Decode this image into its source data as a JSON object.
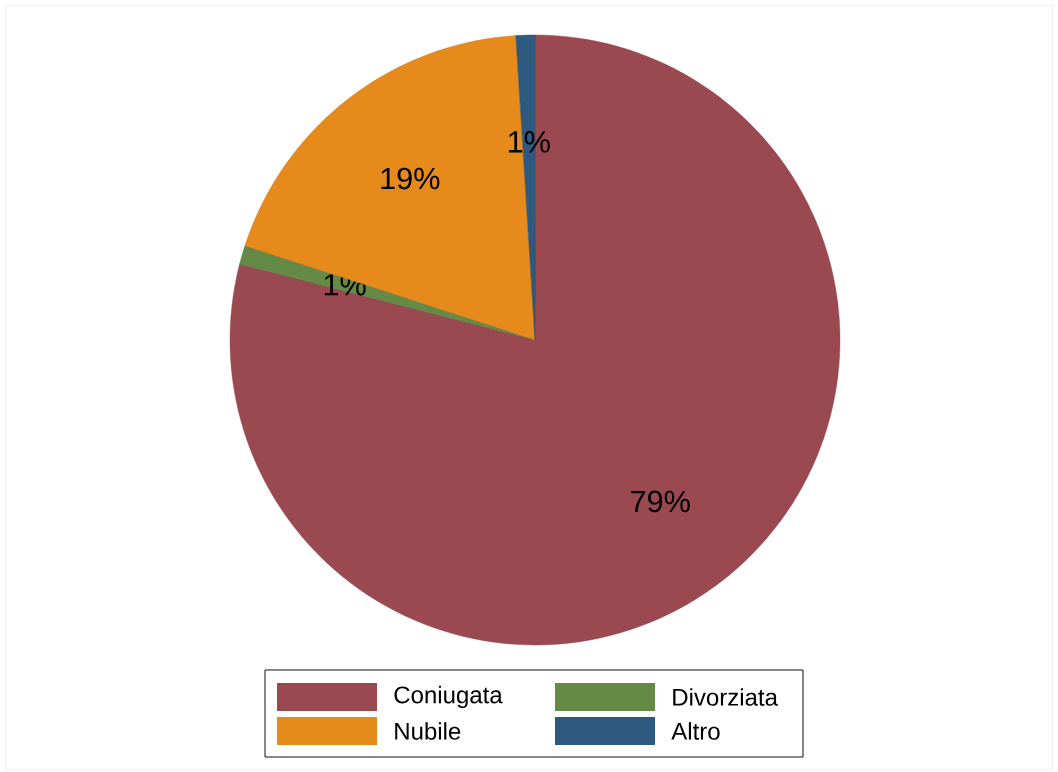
{
  "chart_data": {
    "type": "pie",
    "categories": [
      "Coniugata",
      "Divorziata",
      "Nubile",
      "Altro"
    ],
    "values": [
      79,
      1,
      19,
      1
    ],
    "colors": [
      "#9b4950",
      "#648a45",
      "#e68a1b",
      "#2e5a80"
    ],
    "value_labels": [
      "79%",
      "1%",
      "19%",
      "1%"
    ],
    "legend": "bottom"
  }
}
